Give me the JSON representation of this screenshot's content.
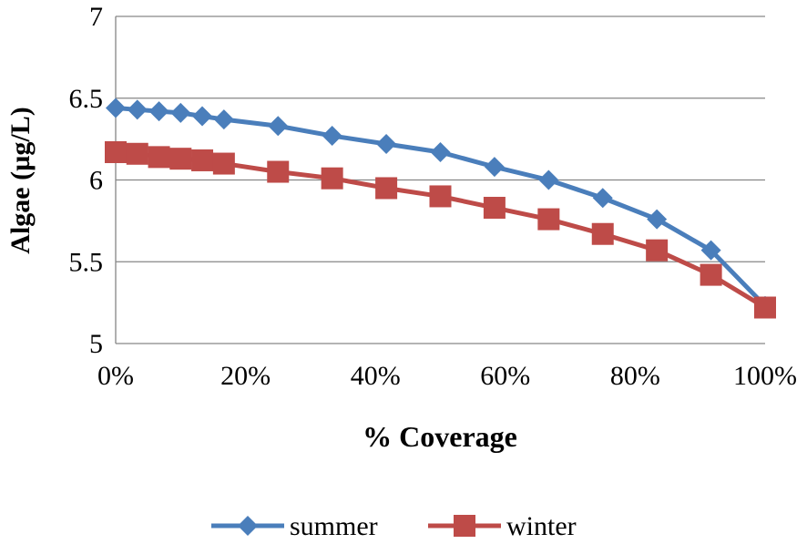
{
  "chart_data": {
    "type": "line",
    "title": "",
    "xlabel": "% Coverage",
    "ylabel": "Algae  (µg/L)",
    "x": [
      0,
      3.33,
      6.67,
      10,
      13.33,
      16.67,
      25,
      33.33,
      41.67,
      50,
      58.33,
      66.67,
      75,
      83.33,
      91.67,
      100
    ],
    "xlim": [
      0,
      100
    ],
    "ylim": [
      5,
      7
    ],
    "xticks": [
      "0%",
      "20%",
      "40%",
      "60%",
      "80%",
      "100%"
    ],
    "xtick_values": [
      0,
      20,
      40,
      60,
      80,
      100
    ],
    "yticks": [
      "5",
      "5.5",
      "6",
      "6.5",
      "7"
    ],
    "ytick_values": [
      5,
      5.5,
      6,
      6.5,
      7
    ],
    "grid": "horizontal",
    "legend": "bottom",
    "series": [
      {
        "name": "summer",
        "color": "#4a7ebb",
        "marker": "diamond",
        "values": [
          6.44,
          6.43,
          6.42,
          6.41,
          6.39,
          6.37,
          6.33,
          6.27,
          6.22,
          6.17,
          6.08,
          6.0,
          5.89,
          5.76,
          5.57,
          5.23
        ]
      },
      {
        "name": "winter",
        "color": "#be4b48",
        "marker": "square",
        "values": [
          6.17,
          6.16,
          6.14,
          6.13,
          6.12,
          6.1,
          6.05,
          6.01,
          5.95,
          5.9,
          5.83,
          5.76,
          5.67,
          5.57,
          5.42,
          5.22
        ]
      }
    ]
  }
}
